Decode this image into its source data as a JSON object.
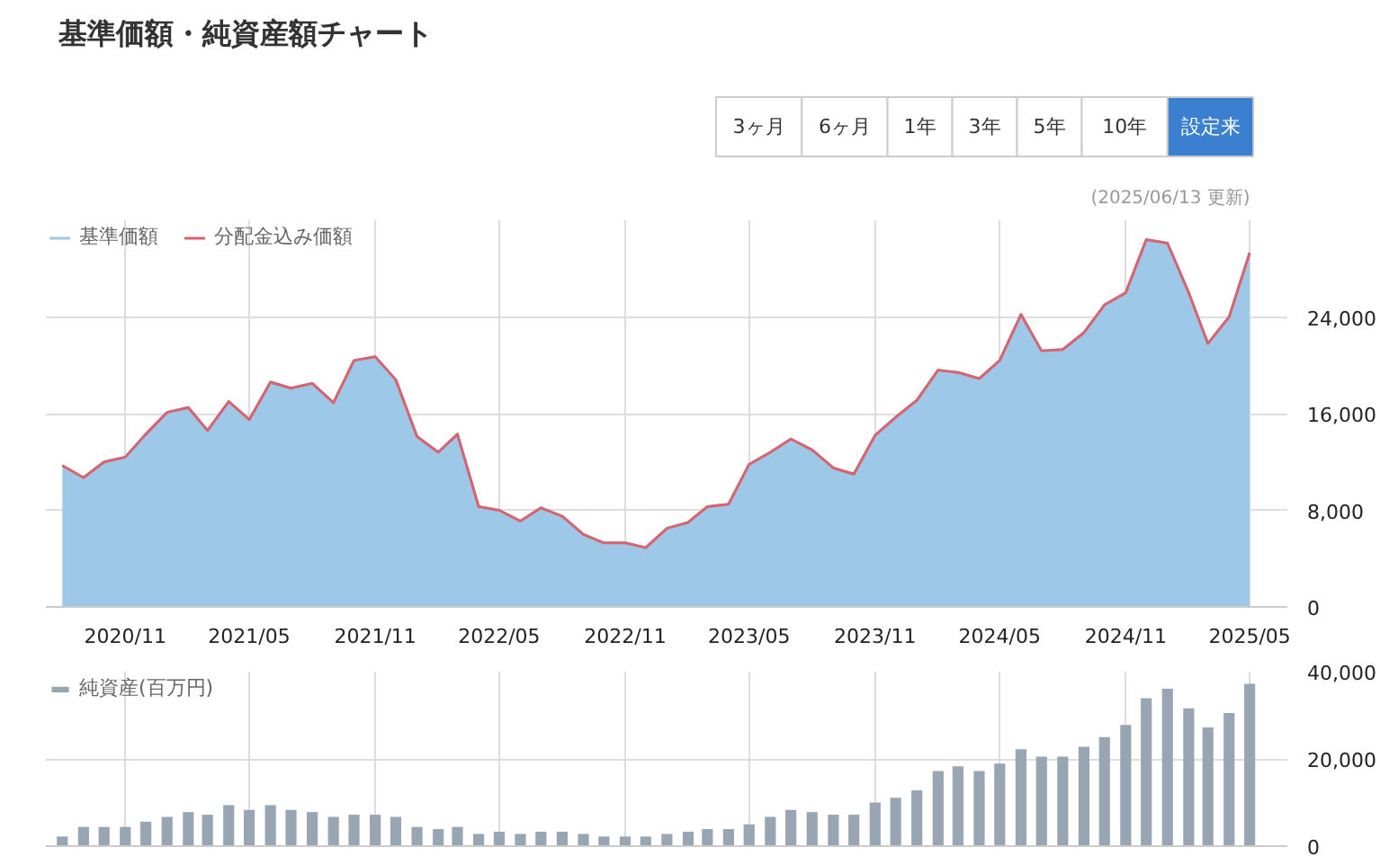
{
  "chart_data": [
    {
      "type": "area",
      "title": "基準価額・純資産額チャート",
      "annotations": [
        "3ヶ月",
        "6ヶ月",
        "1年",
        "3年",
        "5年",
        "10年",
        "設定来",
        "(2025/06/13 更新)"
      ],
      "x": [
        "2020-08",
        "2020-09",
        "2020-10",
        "2020-11",
        "2020-12",
        "2021-01",
        "2021-02",
        "2021-03",
        "2021-04",
        "2021-05",
        "2021-06",
        "2021-07",
        "2021-08",
        "2021-09",
        "2021-10",
        "2021-11",
        "2021-12",
        "2022-01",
        "2022-02",
        "2022-03",
        "2022-04",
        "2022-05",
        "2022-06",
        "2022-07",
        "2022-08",
        "2022-09",
        "2022-10",
        "2022-11",
        "2022-12",
        "2023-01",
        "2023-02",
        "2023-03",
        "2023-04",
        "2023-05",
        "2023-06",
        "2023-07",
        "2023-08",
        "2023-09",
        "2023-10",
        "2023-11",
        "2023-12",
        "2024-01",
        "2024-02",
        "2024-03",
        "2024-04",
        "2024-05",
        "2024-06",
        "2024-07",
        "2024-08",
        "2024-09",
        "2024-10",
        "2024-11",
        "2024-12",
        "2025-01",
        "2025-02",
        "2025-03",
        "2025-04",
        "2025-05"
      ],
      "series": [
        {
          "name": "基準価額",
          "color": "#9dc8e8",
          "values": [
            11700,
            10700,
            12000,
            12400,
            14300,
            16100,
            16500,
            14600,
            17000,
            15500,
            18600,
            18100,
            18500,
            16900,
            20400,
            20700,
            18800,
            14100,
            12800,
            14300,
            8300,
            8000,
            7100,
            8200,
            7500,
            6000,
            5300,
            5300,
            4900,
            6500,
            7000,
            8300,
            8500,
            11800,
            12800,
            13900,
            13000,
            11500,
            11000,
            14200,
            15700,
            17100,
            19600,
            19400,
            18900,
            20400,
            24200,
            21200,
            21300,
            22700,
            25000,
            26000,
            30400,
            30100,
            26000,
            21800,
            24000,
            29300
          ]
        },
        {
          "name": "分配金込み価額",
          "type": "line",
          "color": "#d9626e",
          "values": [
            11700,
            10700,
            12000,
            12400,
            14300,
            16100,
            16500,
            14600,
            17000,
            15500,
            18600,
            18100,
            18500,
            16900,
            20400,
            20700,
            18800,
            14100,
            12800,
            14300,
            8300,
            8000,
            7100,
            8200,
            7500,
            6000,
            5300,
            5300,
            4900,
            6500,
            7000,
            8300,
            8500,
            11800,
            12800,
            13900,
            13000,
            11500,
            11000,
            14200,
            15700,
            17100,
            19600,
            19400,
            18900,
            20400,
            24200,
            21200,
            21300,
            22700,
            25000,
            26000,
            30400,
            30100,
            26000,
            21800,
            24000,
            29300
          ]
        }
      ],
      "xlim": [
        "2020-07-08",
        "2025-06-25"
      ],
      "xticks": [
        {
          "value": "2020-11",
          "label": "2020/11"
        },
        {
          "value": "2021-05",
          "label": "2021/05"
        },
        {
          "value": "2021-11",
          "label": "2021/11"
        },
        {
          "value": "2022-05",
          "label": "2022/05"
        },
        {
          "value": "2022-11",
          "label": "2022/11"
        },
        {
          "value": "2023-05",
          "label": "2023/05"
        },
        {
          "value": "2023-11",
          "label": "2023/11"
        },
        {
          "value": "2024-05",
          "label": "2024/05"
        },
        {
          "value": "2024-11",
          "label": "2024/11"
        },
        {
          "value": "2025-05",
          "label": "2025/05"
        }
      ],
      "ylim": [
        0,
        32000
      ],
      "yticks": [
        0,
        {
          "value": 8000,
          "label": "8,000"
        },
        {
          "value": 16000,
          "label": "16,000"
        },
        {
          "value": 24000,
          "label": "24,000"
        }
      ],
      "grid": true,
      "legend": "top left"
    },
    {
      "type": "bar",
      "x": [
        "2020-08",
        "2020-09",
        "2020-10",
        "2020-11",
        "2020-12",
        "2021-01",
        "2021-02",
        "2021-03",
        "2021-04",
        "2021-05",
        "2021-06",
        "2021-07",
        "2021-08",
        "2021-09",
        "2021-10",
        "2021-11",
        "2021-12",
        "2022-01",
        "2022-02",
        "2022-03",
        "2022-04",
        "2022-05",
        "2022-06",
        "2022-07",
        "2022-08",
        "2022-09",
        "2022-10",
        "2022-11",
        "2022-12",
        "2023-01",
        "2023-02",
        "2023-03",
        "2023-04",
        "2023-05",
        "2023-06",
        "2023-07",
        "2023-08",
        "2023-09",
        "2023-10",
        "2023-11",
        "2023-12",
        "2024-01",
        "2024-02",
        "2024-03",
        "2024-04",
        "2024-05",
        "2024-06",
        "2024-07",
        "2024-08",
        "2024-09",
        "2024-10",
        "2024-11",
        "2024-12",
        "2025-01",
        "2025-02",
        "2025-03",
        "2025-04",
        "2025-05"
      ],
      "series": [
        {
          "name": "純資産(百万円)",
          "color": "#98a6b3",
          "values": [
            2200,
            4400,
            4400,
            4400,
            5600,
            6700,
            7800,
            7200,
            9400,
            8300,
            9400,
            8300,
            7800,
            6700,
            7200,
            7200,
            6700,
            4400,
            3900,
            4400,
            2800,
            3300,
            2800,
            3300,
            3300,
            2800,
            2200,
            2200,
            2200,
            2800,
            3300,
            3900,
            3900,
            5000,
            6700,
            8300,
            7800,
            7200,
            7200,
            10000,
            11100,
            12800,
            17200,
            18300,
            17200,
            18900,
            22200,
            20500,
            20500,
            22800,
            25000,
            27800,
            33900,
            36100,
            31600,
            27200,
            30500,
            37200
          ]
        }
      ],
      "xlim": [
        "2020-07-08",
        "2025-06-25"
      ],
      "xticks": [
        {
          "value": "2020-11",
          "label": null
        },
        {
          "value": "2021-05",
          "label": null
        },
        {
          "value": "2021-11",
          "label": null
        },
        {
          "value": "2022-05",
          "label": null
        },
        {
          "value": "2022-11",
          "label": null
        },
        {
          "value": "2023-05",
          "label": null
        },
        {
          "value": "2023-11",
          "label": null
        },
        {
          "value": "2024-05",
          "label": null
        },
        {
          "value": "2024-11",
          "label": null
        },
        {
          "value": "2025-05",
          "label": null
        }
      ],
      "ylim": [
        0,
        40000
      ],
      "yticks": [
        0,
        {
          "value": 20000,
          "label": "20,000"
        },
        {
          "value": 40000,
          "label": "40,000"
        }
      ],
      "grid": true,
      "legend": "top left",
      "tick_labels": "y"
    }
  ]
}
